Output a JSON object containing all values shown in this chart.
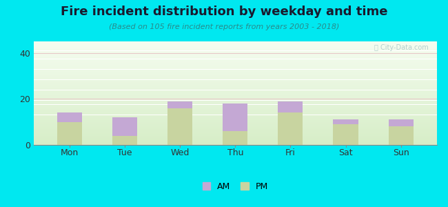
{
  "categories": [
    "Mon",
    "Tue",
    "Wed",
    "Thu",
    "Fri",
    "Sat",
    "Sun"
  ],
  "pm_values": [
    10,
    4,
    16,
    6,
    14,
    9,
    8
  ],
  "am_values": [
    4,
    8,
    3,
    12,
    5,
    2,
    3
  ],
  "am_color": "#c4a8d4",
  "pm_color": "#c8d4a0",
  "title": "Fire incident distribution by weekday and time",
  "subtitle": "(Based on 105 fire incident reports from years 2003 - 2018)",
  "title_color": "#1a1a2e",
  "subtitle_color": "#2a8a8a",
  "ylim": [
    0,
    45
  ],
  "yticks": [
    0,
    20,
    40
  ],
  "outer_bg": "#00e8f0",
  "grid_color": "#e8c8c8",
  "bar_width": 0.45,
  "watermark": "City-Data.com"
}
